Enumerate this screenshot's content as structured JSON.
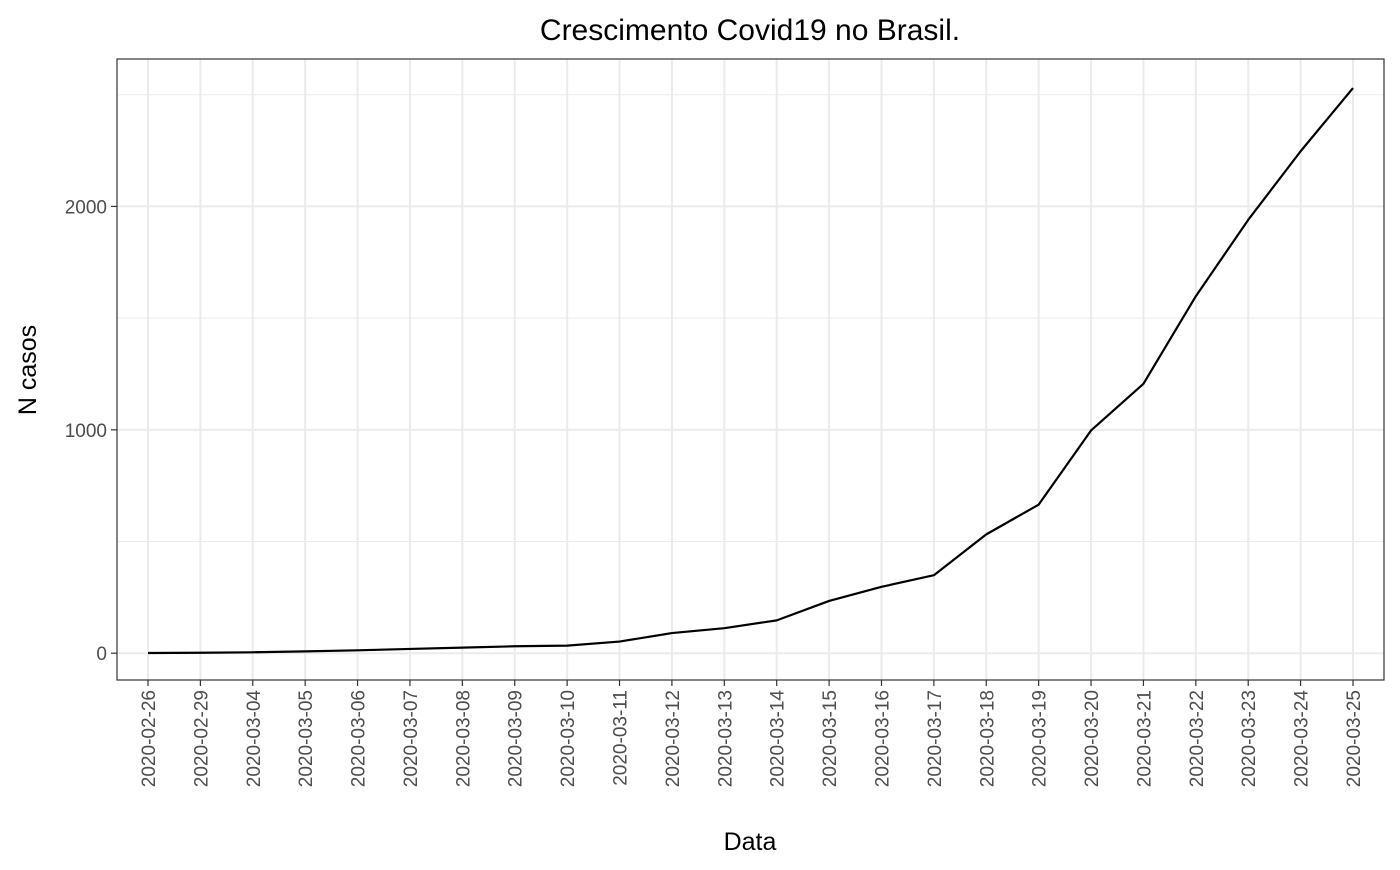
{
  "chart_data": {
    "type": "line",
    "title": "Crescimento Covid19 no Brasil.",
    "xlabel": "Data",
    "ylabel": "N casos",
    "x_scale": "categorical",
    "categories": [
      "2020-02-26",
      "2020-02-29",
      "2020-03-04",
      "2020-03-05",
      "2020-03-06",
      "2020-03-07",
      "2020-03-08",
      "2020-03-09",
      "2020-03-10",
      "2020-03-11",
      "2020-03-12",
      "2020-03-13",
      "2020-03-14",
      "2020-03-15",
      "2020-03-16",
      "2020-03-17",
      "2020-03-18",
      "2020-03-19",
      "2020-03-20",
      "2020-03-21",
      "2020-03-22",
      "2020-03-23",
      "2020-03-24",
      "2020-03-25"
    ],
    "series": [
      {
        "values": [
          1,
          2,
          4,
          8,
          13,
          19,
          25,
          31,
          34,
          52,
          90,
          112,
          147,
          234,
          297,
          349,
          532,
          665,
          997,
          1206,
          1598,
          1940,
          2247,
          2530
        ]
      }
    ],
    "ylim": [
      -120,
      2660
    ],
    "y_ticks": [
      0,
      1000,
      2000
    ],
    "y_minor_ticks": [
      500,
      1500,
      2500
    ],
    "grid": true,
    "theme": "bw",
    "line_color": "#000000",
    "grid_color": "#ebebeb",
    "panel_border_color": "#333333",
    "tick_label_color": "#4d4d4d"
  }
}
